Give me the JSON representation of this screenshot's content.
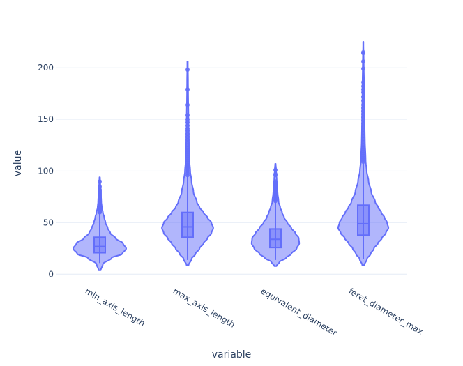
{
  "chart_data": {
    "type": "violin",
    "xlabel": "variable",
    "ylabel": "value",
    "ylim": [
      -9,
      225
    ],
    "y_ticks": [
      0,
      50,
      100,
      150,
      200
    ],
    "grid": true,
    "colors": {
      "series": "#636efa"
    },
    "categories": [
      "min_axis_length",
      "max_axis_length",
      "equivalent_diameter",
      "feret_diameter_max"
    ],
    "violins": [
      {
        "category": "min_axis_length",
        "min": 4,
        "max": 94,
        "whisker_low": 11,
        "q1": 21,
        "median": 27,
        "q3": 36,
        "whisker_high": 59,
        "density": [
          [
            4,
            0.04
          ],
          [
            10,
            0.12
          ],
          [
            16,
            0.45
          ],
          [
            20,
            0.85
          ],
          [
            25,
            1.0
          ],
          [
            30,
            0.88
          ],
          [
            35,
            0.6
          ],
          [
            40,
            0.4
          ],
          [
            45,
            0.3
          ],
          [
            50,
            0.22
          ],
          [
            55,
            0.17
          ],
          [
            60,
            0.12
          ],
          [
            65,
            0.08
          ],
          [
            70,
            0.06
          ],
          [
            80,
            0.04
          ],
          [
            94,
            0.01
          ]
        ],
        "outliers": [
          60,
          61,
          62,
          63,
          64,
          65,
          66,
          67,
          68,
          69,
          70,
          71,
          72,
          73,
          74,
          75,
          76,
          77,
          78,
          79,
          80,
          81,
          82,
          85,
          90
        ]
      },
      {
        "category": "max_axis_length",
        "min": 9,
        "max": 206,
        "whisker_low": 14,
        "q1": 36,
        "median": 46,
        "q3": 60,
        "whisker_high": 95,
        "density": [
          [
            9,
            0.04
          ],
          [
            15,
            0.15
          ],
          [
            20,
            0.3
          ],
          [
            25,
            0.45
          ],
          [
            30,
            0.6
          ],
          [
            35,
            0.75
          ],
          [
            40,
            0.9
          ],
          [
            45,
            0.97
          ],
          [
            50,
            0.9
          ],
          [
            55,
            0.75
          ],
          [
            60,
            0.6
          ],
          [
            65,
            0.45
          ],
          [
            70,
            0.35
          ],
          [
            80,
            0.22
          ],
          [
            90,
            0.15
          ],
          [
            100,
            0.1
          ],
          [
            110,
            0.07
          ],
          [
            130,
            0.05
          ],
          [
            150,
            0.035
          ],
          [
            180,
            0.02
          ],
          [
            206,
            0.01
          ]
        ],
        "outliers": [
          96,
          98,
          100,
          102,
          104,
          106,
          108,
          110,
          112,
          114,
          116,
          118,
          120,
          122,
          125,
          128,
          130,
          133,
          136,
          139,
          141,
          144,
          147,
          150,
          154,
          164,
          179,
          198
        ]
      },
      {
        "category": "equivalent_diameter",
        "min": 8,
        "max": 107,
        "whisker_low": 14,
        "q1": 26,
        "median": 34,
        "q3": 44,
        "whisker_high": 70,
        "density": [
          [
            8,
            0.04
          ],
          [
            12,
            0.15
          ],
          [
            16,
            0.4
          ],
          [
            20,
            0.6
          ],
          [
            25,
            0.8
          ],
          [
            30,
            0.9
          ],
          [
            35,
            0.88
          ],
          [
            40,
            0.75
          ],
          [
            45,
            0.6
          ],
          [
            50,
            0.45
          ],
          [
            55,
            0.33
          ],
          [
            60,
            0.25
          ],
          [
            65,
            0.18
          ],
          [
            70,
            0.12
          ],
          [
            80,
            0.08
          ],
          [
            90,
            0.05
          ],
          [
            100,
            0.03
          ],
          [
            107,
            0.01
          ]
        ],
        "outliers": [
          71,
          72,
          73,
          74,
          75,
          76,
          77,
          78,
          79,
          80,
          81,
          82,
          83,
          84,
          85,
          86,
          87,
          88,
          89,
          90,
          96,
          97,
          101
        ]
      },
      {
        "category": "feret_diameter_max",
        "min": 9,
        "max": 225,
        "whisker_low": 15,
        "q1": 38,
        "median": 49,
        "q3": 67,
        "whisker_high": 108,
        "density": [
          [
            9,
            0.04
          ],
          [
            15,
            0.14
          ],
          [
            20,
            0.28
          ],
          [
            25,
            0.4
          ],
          [
            30,
            0.55
          ],
          [
            35,
            0.7
          ],
          [
            40,
            0.85
          ],
          [
            45,
            0.95
          ],
          [
            50,
            0.9
          ],
          [
            55,
            0.8
          ],
          [
            60,
            0.68
          ],
          [
            65,
            0.56
          ],
          [
            70,
            0.45
          ],
          [
            80,
            0.3
          ],
          [
            90,
            0.2
          ],
          [
            100,
            0.13
          ],
          [
            110,
            0.09
          ],
          [
            130,
            0.06
          ],
          [
            150,
            0.045
          ],
          [
            180,
            0.03
          ],
          [
            200,
            0.02
          ],
          [
            225,
            0.005
          ]
        ],
        "outliers": [
          109,
          111,
          113,
          115,
          117,
          119,
          121,
          123,
          125,
          128,
          131,
          134,
          137,
          140,
          143,
          146,
          149,
          152,
          155,
          158,
          161,
          164,
          168,
          172,
          176,
          179,
          182,
          186,
          199,
          206,
          214,
          215
        ]
      }
    ]
  }
}
